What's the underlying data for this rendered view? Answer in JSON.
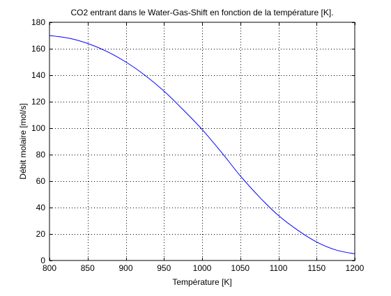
{
  "chart_data": {
    "type": "line",
    "title": "CO2 entrant dans le Water-Gas-Shift en fonction de la température [K].",
    "xlabel": "Température [K]",
    "ylabel": "Débit molaire [mol/s]",
    "xlim": [
      800,
      1200
    ],
    "ylim": [
      0,
      180
    ],
    "xticks": [
      800,
      850,
      900,
      950,
      1000,
      1050,
      1100,
      1150,
      1200
    ],
    "yticks": [
      0,
      20,
      40,
      60,
      80,
      100,
      120,
      140,
      160,
      180
    ],
    "grid": true,
    "line_color": "#0000ff",
    "series": [
      {
        "x": [
          800,
          825,
          850,
          875,
          900,
          925,
          950,
          975,
          1000,
          1025,
          1050,
          1075,
          1100,
          1125,
          1150,
          1175,
          1200
        ],
        "y": [
          170,
          168,
          164,
          158,
          150,
          140,
          128,
          114,
          99,
          82,
          64,
          48,
          34,
          23,
          14,
          8,
          5
        ]
      }
    ]
  }
}
